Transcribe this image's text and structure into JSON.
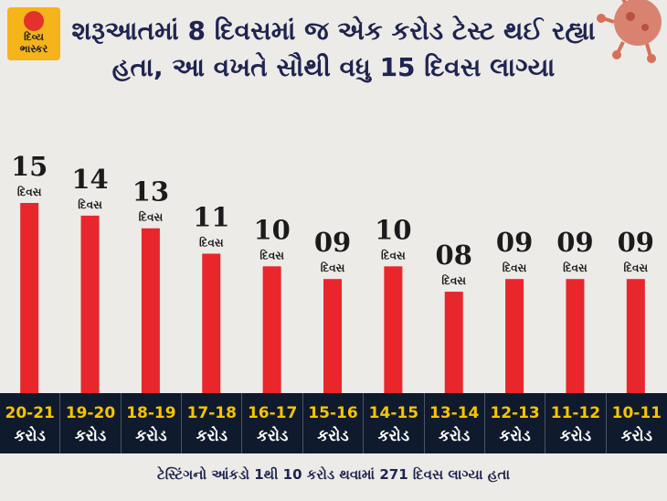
{
  "brand": {
    "logo_text": "દિવ્ય\nભાસ્કર"
  },
  "headline": "શરૂઆતમાં 8 દિવસમાં જ એક કરોડ ટેસ્ટ થઈ રહ્યા હતા, આ વખતે સૌથી વધુ 15 દિવસ લાગ્યા",
  "footer": "ટેસ્ટિંગનો આંકડો 1થી 10 કરોડ થવામાં 271 દિવસ લાગ્યા હતા",
  "colors": {
    "bar": "#e8262b",
    "band": "#0f1a2d",
    "range_text": "#f6c400",
    "headline": "#1f2450",
    "virus": "#d7705a"
  },
  "chart_data": {
    "type": "bar",
    "categories": [
      "20-21",
      "19-20",
      "18-19",
      "17-18",
      "16-17",
      "15-16",
      "14-15",
      "13-14",
      "12-13",
      "11-12",
      "10-11"
    ],
    "category_unit": "કરોડ",
    "values": [
      15,
      14,
      13,
      11,
      10,
      9,
      10,
      8,
      9,
      9,
      9
    ],
    "value_labels": [
      "15",
      "14",
      "13",
      "11",
      "10",
      "09",
      "10",
      "08",
      "09",
      "09",
      "09"
    ],
    "value_unit": "દિવસ",
    "ylim": [
      0,
      15
    ],
    "grid": false,
    "legend": "none"
  }
}
